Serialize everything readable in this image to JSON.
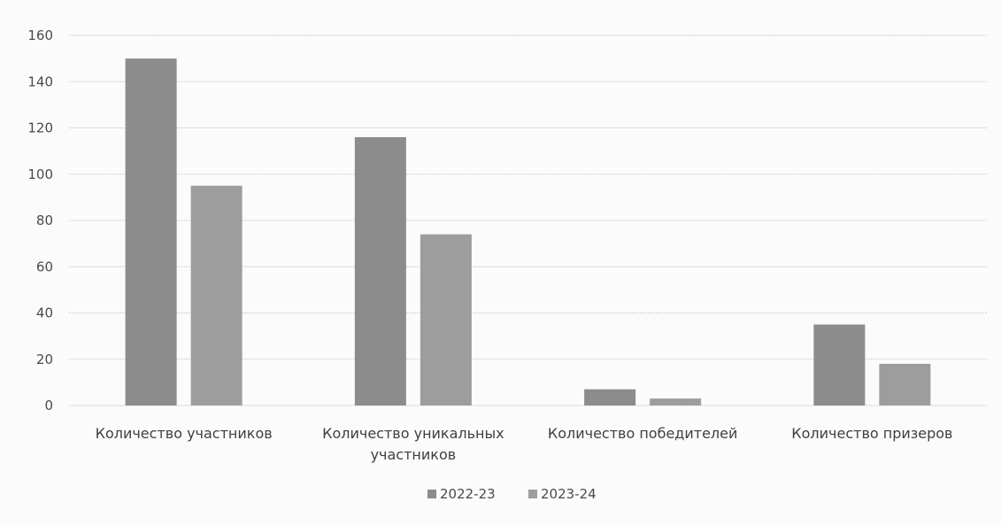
{
  "chart_data": {
    "type": "bar",
    "title": "",
    "xlabel": "",
    "ylabel": "",
    "ylim": [
      0,
      160
    ],
    "yticks": [
      0,
      20,
      40,
      60,
      80,
      100,
      120,
      140,
      160
    ],
    "grid": true,
    "legend_position": "bottom",
    "categories": [
      [
        "Количество участников"
      ],
      [
        "Количество уникальных",
        "участников"
      ],
      [
        "Количество победителей"
      ],
      [
        "Количество призеров"
      ]
    ],
    "series": [
      {
        "name": "2022-23",
        "color": "#8c8c8c",
        "values": [
          150,
          116,
          7,
          35
        ]
      },
      {
        "name": "2023-24",
        "color": "#9d9d9d",
        "values": [
          95,
          74,
          3,
          18
        ]
      }
    ]
  }
}
